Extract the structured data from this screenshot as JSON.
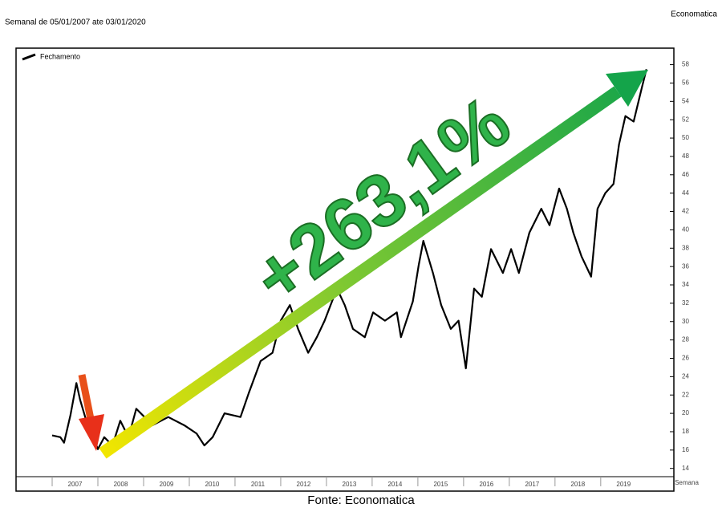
{
  "chart_data": {
    "type": "line",
    "subtitle": "Semanal de 05/01/2007 ate 03/01/2020",
    "source_top": "Economatica",
    "x_label": "Semana",
    "annotation": "+263,1%",
    "footer": "Fonte: Economatica",
    "legend": "upper-left",
    "grid": false,
    "xlim": [
      2006.21,
      2020.6
    ],
    "xticks": [
      2007,
      2008,
      2009,
      2010,
      2011,
      2012,
      2013,
      2014,
      2015,
      2016,
      2017,
      2018,
      2019
    ],
    "ylim": [
      13.1,
      59.8
    ],
    "yticks": [
      14,
      16,
      18,
      20,
      22,
      24,
      26,
      28,
      30,
      32,
      34,
      36,
      38,
      40,
      42,
      44,
      46,
      48,
      50,
      52,
      54,
      56,
      58
    ],
    "series": [
      {
        "name": "Fechamento",
        "color": "#000000",
        "x": [
          2007.0,
          2007.18,
          2007.26,
          2007.4,
          2007.53,
          2007.61,
          2007.74,
          2007.82,
          2008.0,
          2008.14,
          2008.32,
          2008.49,
          2008.67,
          2008.84,
          2009.02,
          2009.19,
          2009.54,
          2009.89,
          2010.16,
          2010.33,
          2010.51,
          2010.77,
          2011.12,
          2011.3,
          2011.56,
          2011.82,
          2012.0,
          2012.2,
          2012.38,
          2012.6,
          2012.79,
          2012.96,
          2013.23,
          2013.4,
          2013.58,
          2013.84,
          2014.02,
          2014.28,
          2014.54,
          2014.63,
          2014.89,
          2015.02,
          2015.12,
          2015.33,
          2015.51,
          2015.72,
          2015.89,
          2016.05,
          2016.23,
          2016.4,
          2016.6,
          2016.86,
          2017.04,
          2017.21,
          2017.44,
          2017.7,
          2017.88,
          2018.09,
          2018.26,
          2018.4,
          2018.58,
          2018.79,
          2018.93,
          2019.1,
          2019.28,
          2019.4,
          2019.54,
          2019.72,
          2019.9,
          2020.0
        ],
        "values": [
          17.6,
          17.4,
          16.8,
          19.8,
          23.3,
          21.5,
          19.3,
          18.4,
          16.1,
          17.4,
          16.5,
          19.2,
          17.4,
          20.5,
          19.6,
          18.7,
          19.6,
          18.7,
          17.8,
          16.5,
          17.4,
          20.0,
          19.6,
          22.2,
          25.7,
          26.6,
          30.1,
          31.8,
          29.2,
          26.6,
          28.3,
          30.1,
          33.6,
          31.8,
          29.2,
          28.3,
          31.0,
          30.1,
          31.0,
          28.3,
          32.2,
          36.2,
          38.8,
          35.3,
          31.8,
          29.2,
          30.1,
          24.9,
          33.6,
          32.7,
          37.9,
          35.3,
          37.9,
          35.3,
          39.7,
          42.3,
          40.5,
          44.5,
          42.3,
          39.7,
          37.1,
          34.9,
          42.3,
          44.0,
          45.0,
          49.3,
          52.4,
          51.8,
          55.5,
          57.5
        ]
      }
    ]
  }
}
